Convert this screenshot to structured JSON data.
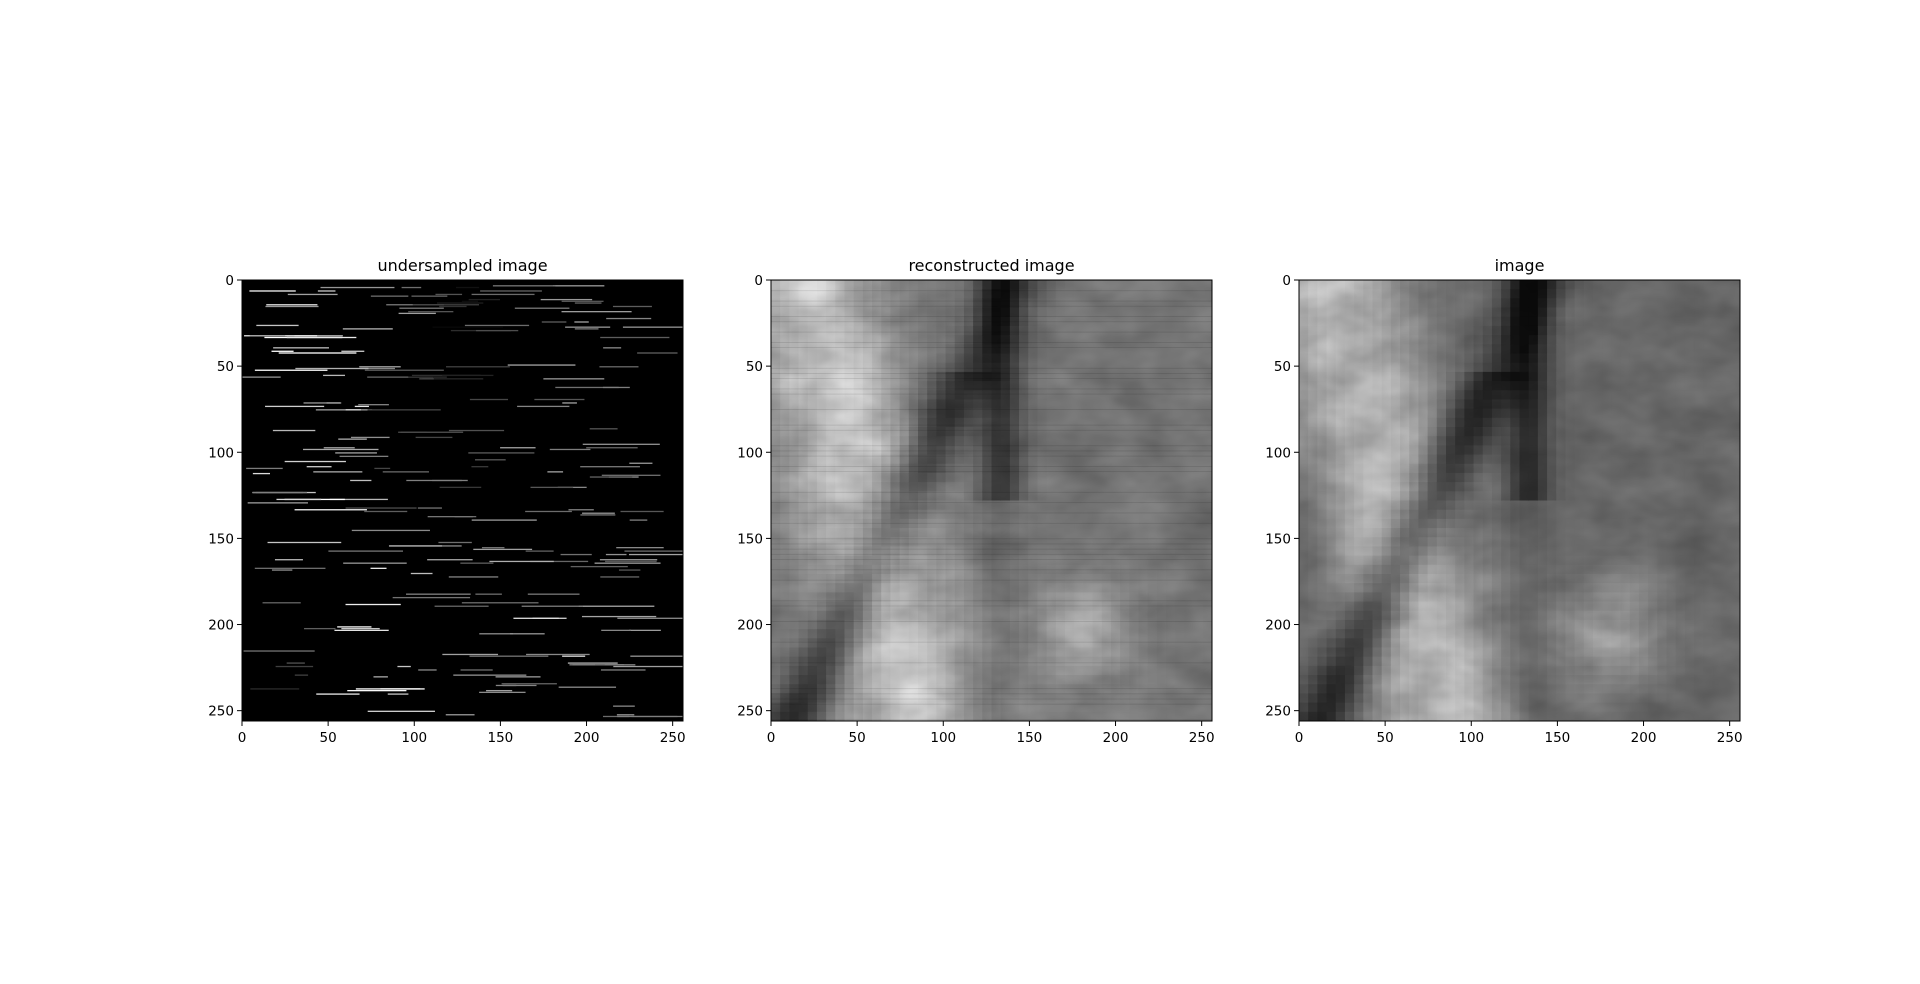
{
  "chart_data": [
    {
      "type": "heatmap",
      "title": "undersampled image",
      "colormap": "gray",
      "content": "undersampled",
      "xlim": [
        0,
        256
      ],
      "ylim": [
        256,
        0
      ],
      "xticks": [
        0,
        50,
        100,
        150,
        200,
        250
      ],
      "yticks": [
        0,
        50,
        100,
        150,
        200,
        250
      ]
    },
    {
      "type": "heatmap",
      "title": "reconstructed image",
      "colormap": "gray",
      "content": "reconstructed",
      "xlim": [
        0,
        256
      ],
      "ylim": [
        256,
        0
      ],
      "xticks": [
        0,
        50,
        100,
        150,
        200,
        250
      ],
      "yticks": [
        0,
        50,
        100,
        150,
        200,
        250
      ]
    },
    {
      "type": "heatmap",
      "title": "image",
      "colormap": "gray",
      "content": "original",
      "xlim": [
        0,
        256
      ],
      "ylim": [
        256,
        0
      ],
      "xticks": [
        0,
        50,
        100,
        150,
        200,
        250
      ],
      "yticks": [
        0,
        50,
        100,
        150,
        200,
        250
      ]
    }
  ]
}
